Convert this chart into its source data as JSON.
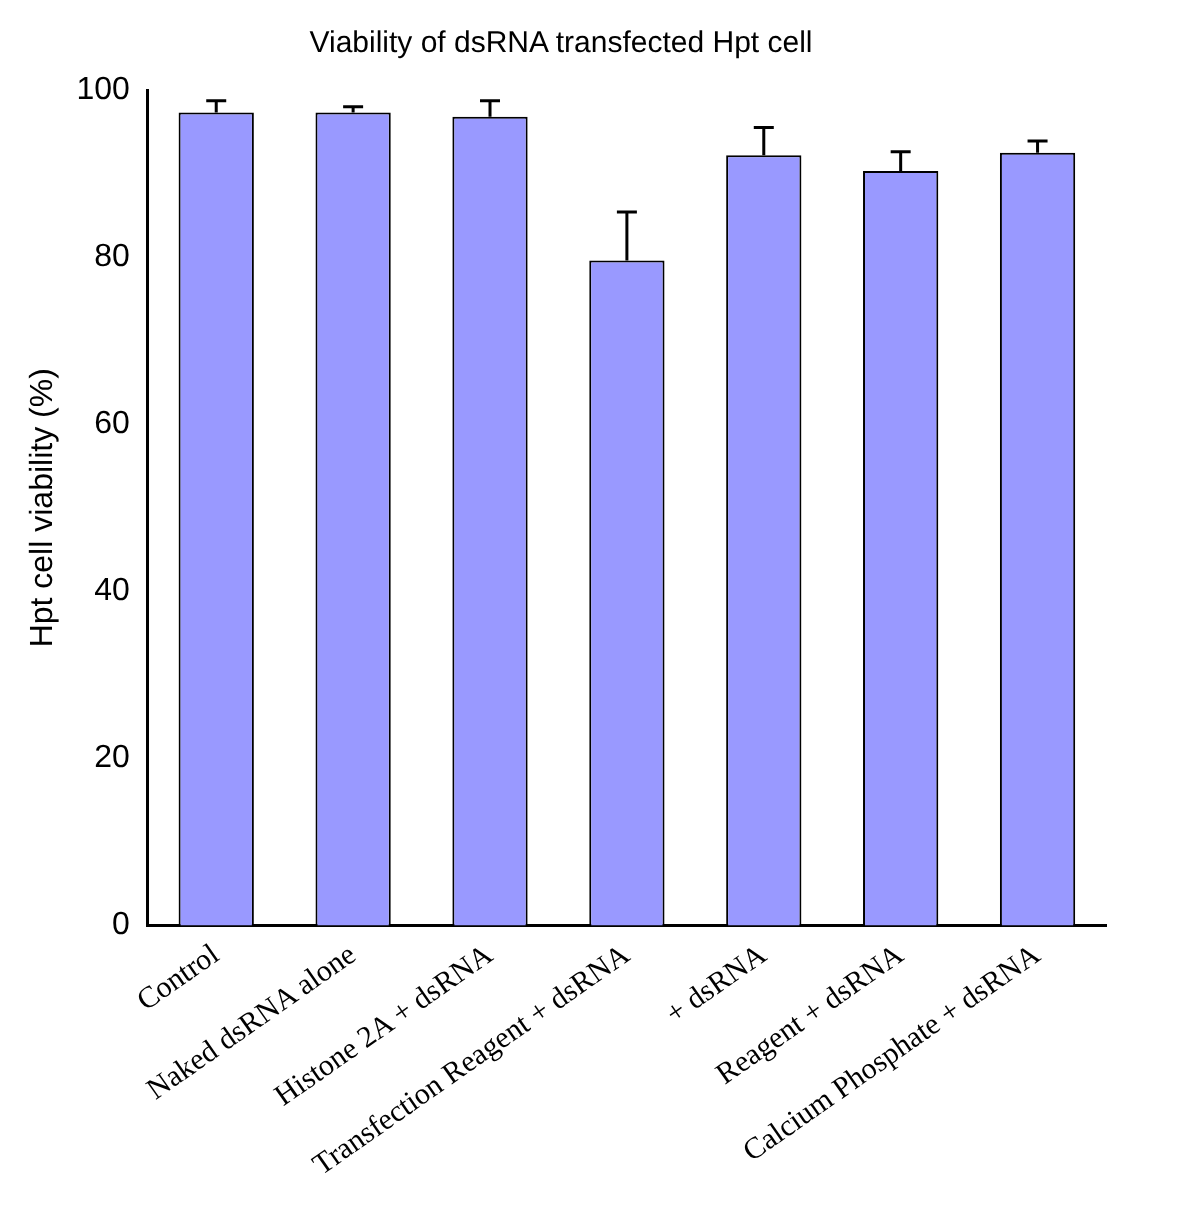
{
  "chart_data": {
    "type": "bar",
    "title": "Viability of dsRNA transfected Hpt cell",
    "ylabel": "Hpt cell viability (%)",
    "categories": [
      "Control",
      "Naked dsRNA alone",
      "Histone 2A + dsRNA",
      "Transfection Reagent + dsRNA",
      "+ dsRNA",
      "Reagent + dsRNA",
      "Calcium Phosphate + dsRNA"
    ],
    "values": [
      97.3,
      97.3,
      96.8,
      79.6,
      92.2,
      90.3,
      92.5
    ],
    "errors": [
      [
        97.3,
        98.7
      ],
      [
        97.3,
        98
      ],
      [
        96.8,
        98.7
      ],
      [
        79.6,
        85.4
      ],
      [
        92.2,
        95.5
      ],
      [
        90.3,
        92.6
      ],
      [
        92.5,
        93.9
      ]
    ],
    "color": "#9999ff",
    "ylim": [
      0,
      100
    ],
    "yticks": [
      0,
      20,
      40,
      60,
      80,
      100
    ],
    "grid": false
  }
}
